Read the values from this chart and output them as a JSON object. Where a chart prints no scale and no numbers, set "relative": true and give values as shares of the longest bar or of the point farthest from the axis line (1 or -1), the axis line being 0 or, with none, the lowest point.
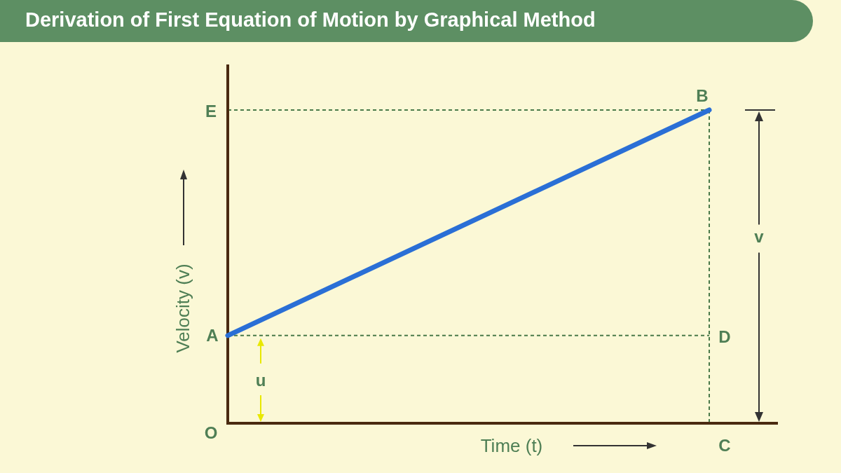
{
  "chart_data": {
    "type": "line",
    "title": "Derivation of First Equation of Motion by Graphical Method",
    "xlabel": "Time (t)",
    "ylabel": "Velocity (v)",
    "categories": [
      null,
      null
    ],
    "relative": true,
    "series": [
      {
        "color": "#2a6fd6",
        "values": [
          0.28,
          1
        ]
      }
    ],
    "ref_lines": [
      {
        "axis": "y",
        "value": 1,
        "color": "#4a7a4a",
        "line_style": "dashed"
      },
      {
        "axis": "y",
        "value": 0.28,
        "color": "#4a7a4a",
        "line_style": "dashed"
      }
    ],
    "annotations": [
      "A",
      "B",
      "C",
      "D",
      "E",
      "O",
      "u",
      "v"
    ]
  }
}
